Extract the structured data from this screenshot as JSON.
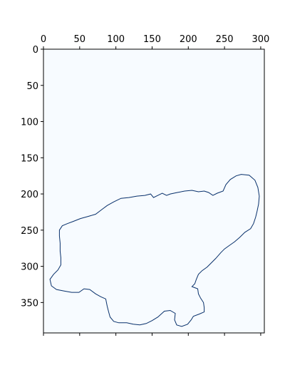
{
  "chart_data": {
    "type": "heatmap",
    "xlim": [
      0,
      305
    ],
    "ylim": [
      0,
      392
    ],
    "x_ticks": [
      0,
      50,
      100,
      150,
      200,
      250,
      300
    ],
    "x_tick_labels": [
      "0",
      "50",
      "100",
      "150",
      "200",
      "250",
      "300"
    ],
    "x_tick_position": "top",
    "y_ticks": [
      0,
      50,
      100,
      150,
      200,
      250,
      300,
      350
    ],
    "y_tick_labels": [
      "0",
      "50",
      "100",
      "150",
      "200",
      "250",
      "300",
      "350"
    ],
    "y_inverted": true,
    "grid": false,
    "colormap": "Blues",
    "background_color": "#f7fbff",
    "outline_color": "#08306b",
    "outline": [
      [
        273,
        173
      ],
      [
        284,
        174
      ],
      [
        292,
        181
      ],
      [
        296,
        191
      ],
      [
        298,
        203
      ],
      [
        297,
        214
      ],
      [
        295,
        224
      ],
      [
        293,
        232
      ],
      [
        290,
        241
      ],
      [
        286,
        248
      ],
      [
        278,
        253
      ],
      [
        271,
        260
      ],
      [
        264,
        266
      ],
      [
        257,
        271
      ],
      [
        250,
        276
      ],
      [
        245,
        281
      ],
      [
        238,
        289
      ],
      [
        232,
        295
      ],
      [
        226,
        301
      ],
      [
        219,
        306
      ],
      [
        214,
        311
      ],
      [
        211,
        318
      ],
      [
        209,
        324
      ],
      [
        205,
        328
      ],
      [
        213,
        331
      ],
      [
        214,
        338
      ],
      [
        217,
        344
      ],
      [
        221,
        350
      ],
      [
        222,
        357
      ],
      [
        222,
        363
      ],
      [
        215,
        366
      ],
      [
        207,
        369
      ],
      [
        204,
        374
      ],
      [
        199,
        380
      ],
      [
        191,
        383
      ],
      [
        184,
        381
      ],
      [
        181,
        374
      ],
      [
        182,
        365
      ],
      [
        175,
        361
      ],
      [
        167,
        362
      ],
      [
        158,
        370
      ],
      [
        150,
        375
      ],
      [
        142,
        379
      ],
      [
        133,
        381
      ],
      [
        124,
        380
      ],
      [
        115,
        378
      ],
      [
        104,
        378
      ],
      [
        97,
        376
      ],
      [
        92,
        370
      ],
      [
        90,
        363
      ],
      [
        88,
        355
      ],
      [
        86,
        345
      ],
      [
        79,
        342
      ],
      [
        72,
        338
      ],
      [
        64,
        332
      ],
      [
        56,
        331
      ],
      [
        49,
        336
      ],
      [
        39,
        336
      ],
      [
        28,
        334
      ],
      [
        18,
        332
      ],
      [
        11,
        327
      ],
      [
        9,
        318
      ],
      [
        14,
        311
      ],
      [
        20,
        305
      ],
      [
        24,
        298
      ],
      [
        24,
        288
      ],
      [
        23,
        279
      ],
      [
        23,
        268
      ],
      [
        22,
        258
      ],
      [
        22,
        250
      ],
      [
        26,
        244
      ],
      [
        33,
        241
      ],
      [
        41,
        238
      ],
      [
        51,
        234
      ],
      [
        62,
        231
      ],
      [
        72,
        228
      ],
      [
        80,
        222
      ],
      [
        88,
        216
      ],
      [
        97,
        211
      ],
      [
        107,
        206
      ],
      [
        118,
        205
      ],
      [
        129,
        203
      ],
      [
        140,
        202
      ],
      [
        148,
        200
      ],
      [
        152,
        205
      ],
      [
        158,
        202
      ],
      [
        164,
        199
      ],
      [
        170,
        202
      ],
      [
        175,
        200
      ],
      [
        185,
        198
      ],
      [
        195,
        196
      ],
      [
        205,
        195
      ],
      [
        214,
        197
      ],
      [
        222,
        196
      ],
      [
        228,
        198
      ],
      [
        234,
        202
      ],
      [
        240,
        199
      ],
      [
        248,
        196
      ],
      [
        252,
        187
      ],
      [
        258,
        180
      ],
      [
        266,
        175
      ],
      [
        273,
        173
      ]
    ]
  }
}
